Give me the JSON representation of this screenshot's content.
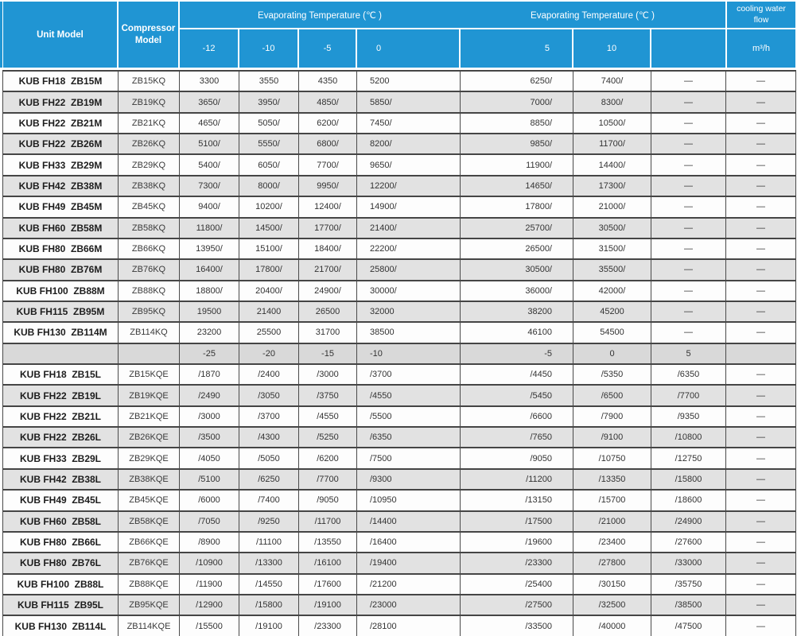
{
  "table": {
    "header": {
      "unit_model": "Unit Model",
      "compressor_model": "Compressor Model",
      "evap_temp_1": "Evaporating Temperature (℃ )",
      "evap_temp_2": "Evaporating Temperature (℃ )",
      "cooling_water_flow": "cooling water flow",
      "flow_unit": "m³/h",
      "sub_temps": [
        "-12",
        "-10",
        "-5",
        "0",
        "5",
        "10",
        ""
      ]
    },
    "rows": [
      {
        "unit": "KUB FH18  ZB15M",
        "compressor": "ZB15KQ",
        "values": [
          "3300",
          "3550",
          "4350",
          "5200",
          "6250/",
          "7400/",
          "—"
        ],
        "flow": "—"
      },
      {
        "unit": "KUB FH22  ZB19M",
        "compressor": "ZB19KQ",
        "values": [
          "3650/",
          "3950/",
          "4850/",
          "5850/",
          "7000/",
          "8300/",
          "—"
        ],
        "flow": "—"
      },
      {
        "unit": "KUB FH22  ZB21M",
        "compressor": "ZB21KQ",
        "values": [
          "4650/",
          "5050/",
          "6200/",
          "7450/",
          "8850/",
          "10500/",
          "—"
        ],
        "flow": "—"
      },
      {
        "unit": "KUB FH22  ZB26M",
        "compressor": "ZB26KQ",
        "values": [
          "5100/",
          "5550/",
          "6800/",
          "8200/",
          "9850/",
          "11700/",
          "—"
        ],
        "flow": "—"
      },
      {
        "unit": "KUB FH33  ZB29M",
        "compressor": "ZB29KQ",
        "values": [
          "5400/",
          "6050/",
          "7700/",
          "9650/",
          "11900/",
          "14400/",
          "—"
        ],
        "flow": "—"
      },
      {
        "unit": "KUB FH42  ZB38M",
        "compressor": "ZB38KQ",
        "values": [
          "7300/",
          "8000/",
          "9950/",
          "12200/",
          "14650/",
          "17300/",
          "—"
        ],
        "flow": "—"
      },
      {
        "unit": "KUB FH49  ZB45M",
        "compressor": "ZB45KQ",
        "values": [
          "9400/",
          "10200/",
          "12400/",
          "14900/",
          "17800/",
          "21000/",
          "—"
        ],
        "flow": "—"
      },
      {
        "unit": "KUB FH60  ZB58M",
        "compressor": "ZB58KQ",
        "values": [
          "11800/",
          "14500/",
          "17700/",
          "21400/",
          "25700/",
          "30500/",
          "—"
        ],
        "flow": "—"
      },
      {
        "unit": "KUB FH80  ZB66M",
        "compressor": "ZB66KQ",
        "values": [
          "13950/",
          "15100/",
          "18400/",
          "22200/",
          "26500/",
          "31500/",
          "—"
        ],
        "flow": "—"
      },
      {
        "unit": "KUB FH80  ZB76M",
        "compressor": "ZB76KQ",
        "values": [
          "16400/",
          "17800/",
          "21700/",
          "25800/",
          "30500/",
          "35500/",
          "—"
        ],
        "flow": "—"
      },
      {
        "unit": "KUB FH100  ZB88M",
        "compressor": "ZB88KQ",
        "values": [
          "18800/",
          "20400/",
          "24900/",
          "30000/",
          "36000/",
          "42000/",
          "—"
        ],
        "flow": "—"
      },
      {
        "unit": "KUB FH115  ZB95M",
        "compressor": "ZB95KQ",
        "values": [
          "19500",
          "21400",
          "26500",
          "32000",
          "38200",
          "45200",
          "—"
        ],
        "flow": "—"
      },
      {
        "unit": "KUB FH130  ZB114M",
        "compressor": "ZB114KQ",
        "values": [
          "23200",
          "25500",
          "31700",
          "38500",
          "46100",
          "54500",
          "—"
        ],
        "flow": "—"
      },
      {
        "type": "separator",
        "unit": "",
        "compressor": "",
        "values": [
          "-25",
          "-20",
          "-15",
          "-10",
          "-5",
          "0",
          "5"
        ],
        "flow": ""
      },
      {
        "unit": "KUB FH18  ZB15L",
        "compressor": "ZB15KQE",
        "values": [
          "/1870",
          "/2400",
          "/3000",
          "/3700",
          "/4450",
          "/5350",
          "/6350"
        ],
        "flow": "—"
      },
      {
        "unit": "KUB FH22  ZB19L",
        "compressor": "ZB19KQE",
        "values": [
          "/2490",
          "/3050",
          "/3750",
          "/4550",
          "/5450",
          "/6500",
          "/7700"
        ],
        "flow": "—"
      },
      {
        "unit": "KUB FH22  ZB21L",
        "compressor": "ZB21KQE",
        "values": [
          "/3000",
          "/3700",
          "/4550",
          "/5500",
          "/6600",
          "/7900",
          "/9350"
        ],
        "flow": "—"
      },
      {
        "unit": "KUB FH22  ZB26L",
        "compressor": "ZB26KQE",
        "values": [
          "/3500",
          "/4300",
          "/5250",
          "/6350",
          "/7650",
          "/9100",
          "/10800"
        ],
        "flow": "—"
      },
      {
        "unit": "KUB FH33  ZB29L",
        "compressor": "ZB29KQE",
        "values": [
          "/4050",
          "/5050",
          "/6200",
          "/7500",
          "/9050",
          "/10750",
          "/12750"
        ],
        "flow": "—"
      },
      {
        "unit": "KUB FH42  ZB38L",
        "compressor": "ZB38KQE",
        "values": [
          "/5100",
          "/6250",
          "/7700",
          "/9300",
          "/11200",
          "/13350",
          "/15800"
        ],
        "flow": "—"
      },
      {
        "unit": "KUB FH49  ZB45L",
        "compressor": "ZB45KQE",
        "values": [
          "/6000",
          "/7400",
          "/9050",
          "/10950",
          "/13150",
          "/15700",
          "/18600"
        ],
        "flow": "—"
      },
      {
        "unit": "KUB FH60  ZB58L",
        "compressor": "ZB58KQE",
        "values": [
          "/7050",
          "/9250",
          "/11700",
          "/14400",
          "/17500",
          "/21000",
          "/24900"
        ],
        "flow": "—"
      },
      {
        "unit": "KUB FH80  ZB66L",
        "compressor": "ZB66KQE",
        "values": [
          "/8900",
          "/11100",
          "/13550",
          "/16400",
          "/19600",
          "/23400",
          "/27600"
        ],
        "flow": "—"
      },
      {
        "unit": "KUB FH80  ZB76L",
        "compressor": "ZB76KQE",
        "values": [
          "/10900",
          "/13300",
          "/16100",
          "/19400",
          "/23300",
          "/27800",
          "/33000"
        ],
        "flow": "—"
      },
      {
        "unit": "KUB FH100  ZB88L",
        "compressor": "ZB88KQE",
        "values": [
          "/11900",
          "/14550",
          "/17600",
          "/21200",
          "/25400",
          "/30150",
          "/35750"
        ],
        "flow": "—"
      },
      {
        "unit": "KUB FH115  ZB95L",
        "compressor": "ZB95KQE",
        "values": [
          "/12900",
          "/15800",
          "/19100",
          "/23000",
          "/27500",
          "/32500",
          "/38500"
        ],
        "flow": "—"
      },
      {
        "unit": "KUB FH130  ZB114L",
        "compressor": "ZB114KQE",
        "values": [
          "/15500",
          "/19100",
          "/23300",
          "/28100",
          "/33500",
          "/40000",
          "/47500"
        ],
        "flow": "—"
      }
    ],
    "colors": {
      "header_blue": "#2095d3",
      "row_grey": "#e2e2e2",
      "separator_grey": "#d9d9d9",
      "border_dark": "#454545"
    }
  }
}
